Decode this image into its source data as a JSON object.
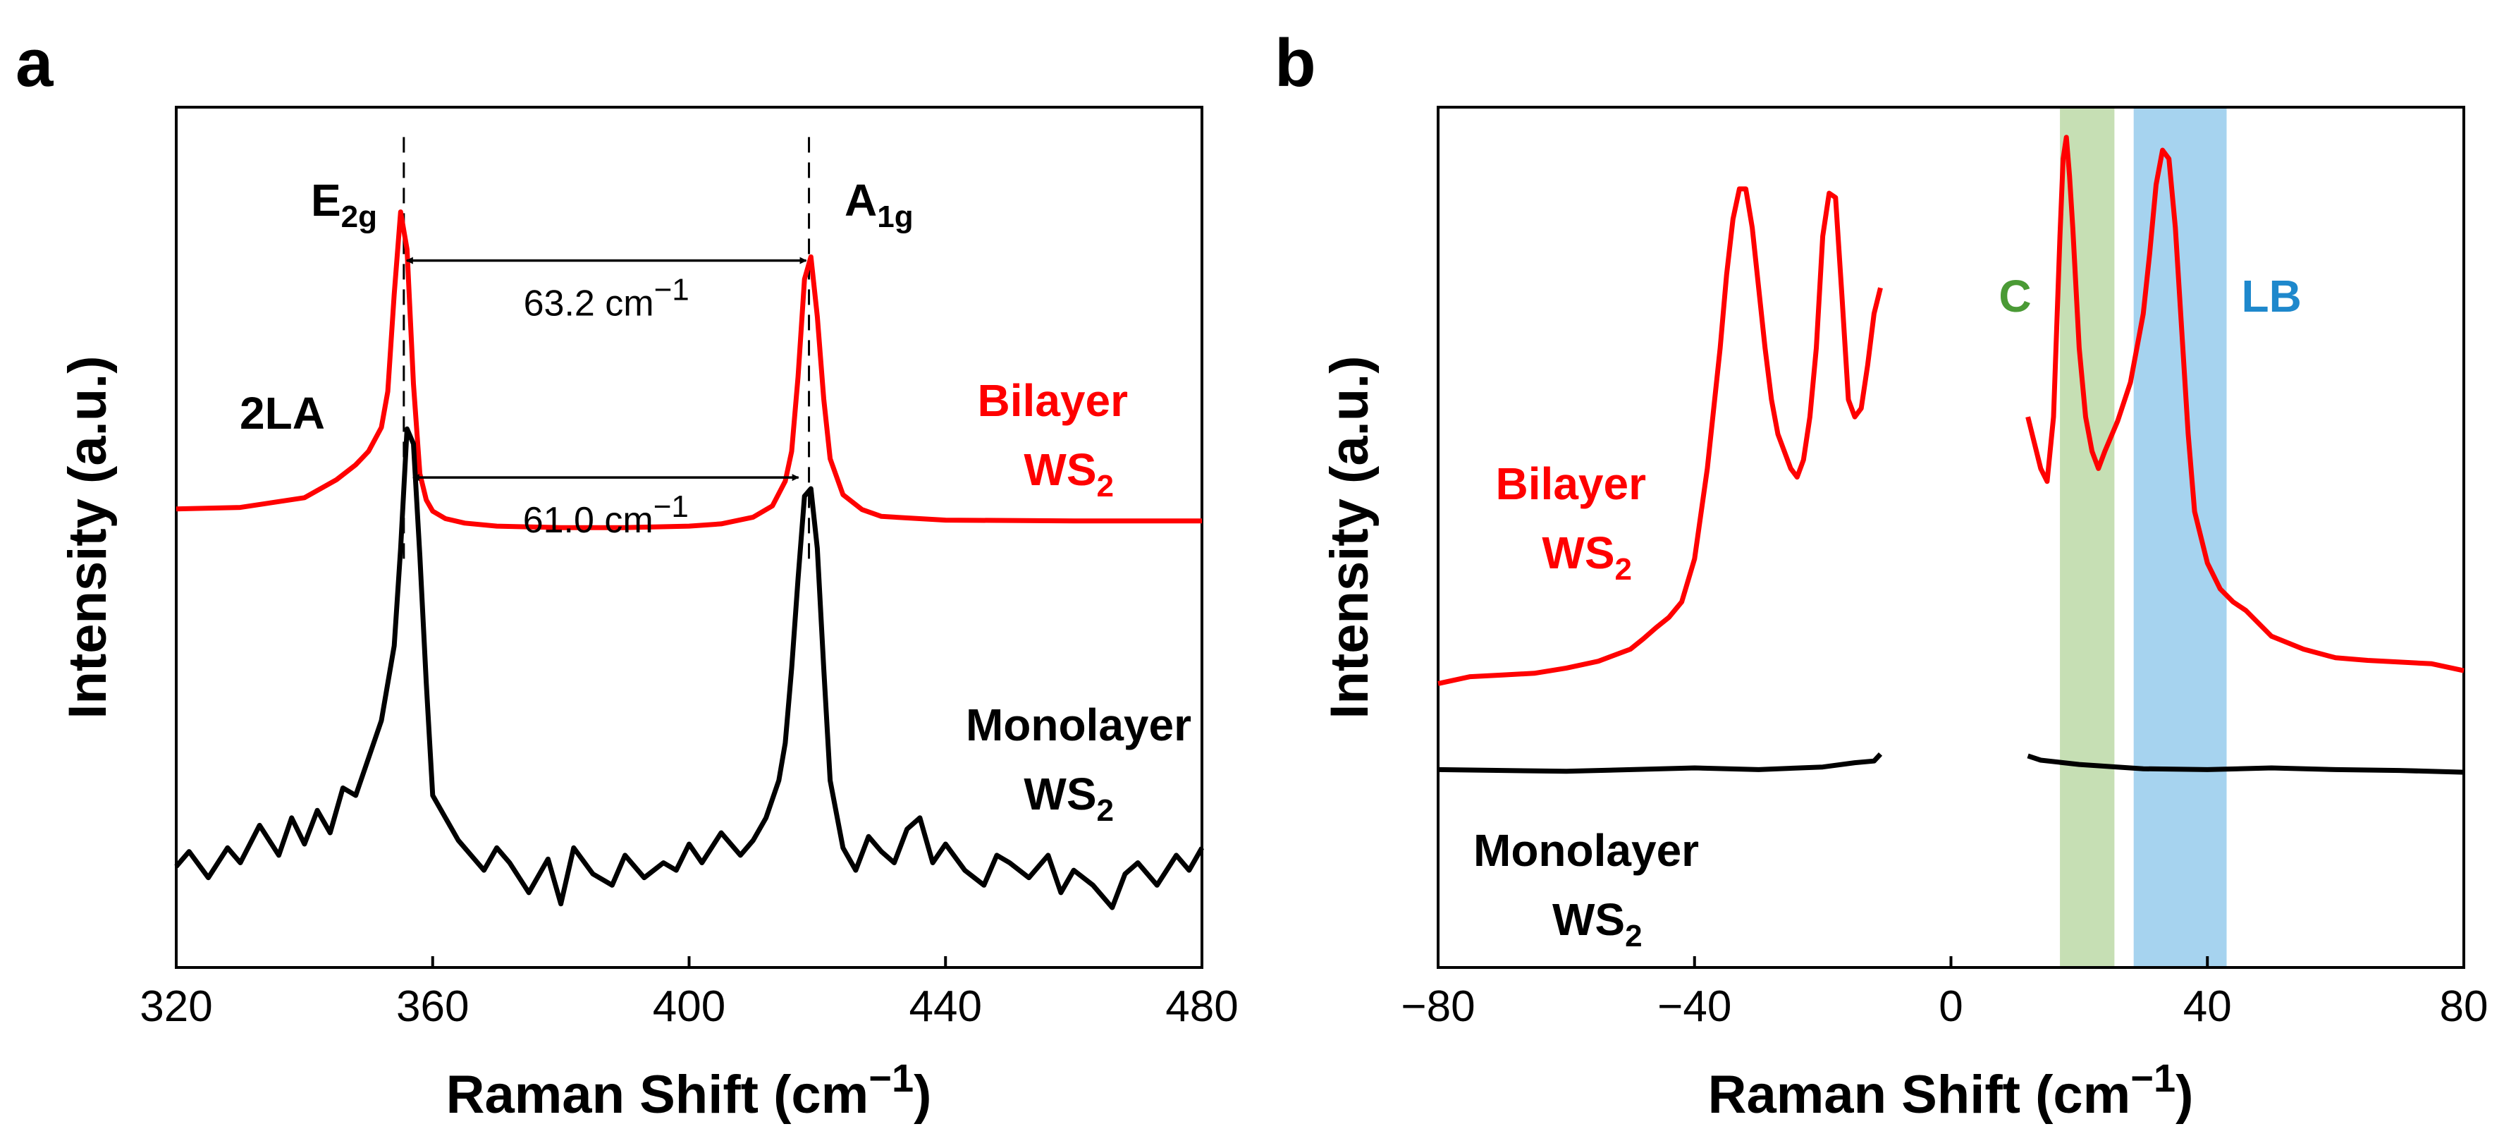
{
  "chart_data": [
    {
      "panel": "a",
      "type": "line",
      "xlabel": "Raman Shift (cm",
      "xlabel_sup": "−1",
      "xlabel_close": ")",
      "ylabel": "Intensity (a.u.)",
      "xlim": [
        320,
        480
      ],
      "ylim": [
        0,
        1.15
      ],
      "xticks": [
        "320",
        "360",
        "400",
        "440",
        "480"
      ],
      "xtick_values": [
        320,
        360,
        400,
        440,
        480
      ],
      "series": [
        {
          "name": "Bilayer WS2",
          "label_line1": "Bilayer",
          "label_line2": "WS",
          "label_sub": "2",
          "color": "#ff0000",
          "x": [
            320,
            330,
            340,
            345,
            348,
            350,
            352,
            353,
            354,
            355,
            356,
            357,
            358,
            359,
            360,
            362,
            365,
            370,
            380,
            390,
            400,
            405,
            410,
            413,
            415,
            416,
            417,
            418,
            419,
            420,
            421,
            422,
            424,
            427,
            430,
            440,
            460,
            480
          ],
          "y": [
            0.613,
            0.615,
            0.628,
            0.652,
            0.672,
            0.69,
            0.722,
            0.77,
            0.9,
            1.01,
            0.96,
            0.78,
            0.66,
            0.625,
            0.61,
            0.6,
            0.594,
            0.59,
            0.588,
            0.588,
            0.59,
            0.593,
            0.602,
            0.617,
            0.65,
            0.69,
            0.79,
            0.92,
            0.95,
            0.87,
            0.76,
            0.68,
            0.632,
            0.612,
            0.603,
            0.598,
            0.597,
            0.597
          ]
        },
        {
          "name": "Monolayer WS2",
          "label_line1": "Monolayer",
          "label_line2": "WS",
          "label_sub": "2",
          "color": "#000000",
          "x": [
            320,
            322,
            325,
            328,
            330,
            333,
            336,
            338,
            340,
            342,
            344,
            346,
            348,
            350,
            352,
            354,
            355,
            356,
            357,
            358,
            359,
            360,
            362,
            364,
            366,
            368,
            370,
            372,
            375,
            378,
            380,
            382,
            385,
            388,
            390,
            393,
            396,
            398,
            400,
            402,
            405,
            408,
            410,
            412,
            414,
            415,
            416,
            417,
            418,
            419,
            420,
            421,
            422,
            424,
            426,
            428,
            430,
            432,
            434,
            436,
            438,
            440,
            443,
            446,
            448,
            450,
            453,
            456,
            458,
            460,
            463,
            466,
            468,
            470,
            473,
            476,
            478,
            480
          ],
          "y": [
            0.135,
            0.155,
            0.12,
            0.16,
            0.14,
            0.19,
            0.15,
            0.2,
            0.165,
            0.21,
            0.18,
            0.24,
            0.23,
            0.28,
            0.33,
            0.43,
            0.56,
            0.72,
            0.7,
            0.55,
            0.38,
            0.23,
            0.2,
            0.17,
            0.15,
            0.13,
            0.16,
            0.14,
            0.1,
            0.145,
            0.085,
            0.16,
            0.125,
            0.11,
            0.15,
            0.12,
            0.14,
            0.13,
            0.165,
            0.14,
            0.18,
            0.15,
            0.17,
            0.2,
            0.25,
            0.3,
            0.4,
            0.52,
            0.63,
            0.64,
            0.56,
            0.4,
            0.25,
            0.16,
            0.13,
            0.175,
            0.155,
            0.14,
            0.185,
            0.2,
            0.14,
            0.165,
            0.13,
            0.11,
            0.15,
            0.14,
            0.12,
            0.15,
            0.1,
            0.13,
            0.11,
            0.08,
            0.125,
            0.14,
            0.11,
            0.15,
            0.13,
            0.16
          ]
        }
      ],
      "peak_labels": [
        {
          "main": "E",
          "sub": "2g",
          "x": 355
        },
        {
          "main": "A",
          "sub": "1g",
          "x": 419
        }
      ],
      "shoulder_label": "2LA",
      "annotations": [
        {
          "text": "63.2 cm",
          "sup": "−1",
          "x1": 355.5,
          "x2": 418.7,
          "y": 0.945
        },
        {
          "text": "61.0 cm",
          "sup": "−1",
          "x1": 356.5,
          "x2": 417.5,
          "y": 0.655
        }
      ],
      "dashed_lines": [
        {
          "x": 355.5,
          "y1": 0.545,
          "y2": 1.11
        },
        {
          "x": 418.7,
          "y1": 0.545,
          "y2": 1.11
        }
      ]
    },
    {
      "panel": "b",
      "type": "line",
      "xlabel": "Raman Shift (cm",
      "xlabel_sup": "−1",
      "xlabel_close": ")",
      "ylabel": "Intensity (a.u.)",
      "xlim": [
        -80,
        80
      ],
      "ylim": [
        0,
        1.0
      ],
      "xticks": [
        "−80",
        "−40",
        "0",
        "40",
        "80"
      ],
      "xtick_values": [
        -80,
        -40,
        0,
        40,
        80
      ],
      "bands": [
        {
          "label": "C",
          "x0": 17,
          "x1": 25.5,
          "color": "#c6dfb4",
          "label_color": "#4a9a35",
          "label_x": 10
        },
        {
          "label": "LB",
          "x0": 28.5,
          "x1": 43,
          "color": "#a6d3ef",
          "label_color": "#1e88cc",
          "label_x": 50
        }
      ],
      "series": [
        {
          "name": "Bilayer WS2",
          "label_line1": "Bilayer",
          "label_line2": "WS",
          "label_sub": "2",
          "color": "#ff0000",
          "segments": [
            {
              "x": [
                -80,
                -75,
                -70,
                -65,
                -60,
                -55,
                -50,
                -48,
                -46,
                -44,
                -42,
                -40,
                -38,
                -36,
                -35,
                -34,
                -33,
                -32,
                -31,
                -30,
                -29,
                -28,
                -27,
                -26,
                -25,
                -24,
                -23,
                -22,
                -21,
                -20,
                -19,
                -18,
                -17,
                -16,
                -15,
                -14,
                -13,
                -12,
                -11
              ],
              "y": [
                0.33,
                0.338,
                0.34,
                0.342,
                0.348,
                0.356,
                0.37,
                0.382,
                0.395,
                0.407,
                0.425,
                0.475,
                0.58,
                0.72,
                0.805,
                0.87,
                0.905,
                0.905,
                0.86,
                0.79,
                0.72,
                0.66,
                0.62,
                0.6,
                0.58,
                0.57,
                0.59,
                0.64,
                0.72,
                0.85,
                0.9,
                0.895,
                0.78,
                0.66,
                0.64,
                0.65,
                0.7,
                0.76,
                0.79
              ]
            },
            {
              "x": [
                12,
                13,
                14,
                15,
                16,
                17,
                17.5,
                18,
                18.5,
                19,
                20,
                21,
                22,
                23,
                24,
                26,
                28,
                30,
                31,
                32,
                33,
                34,
                35,
                36,
                37,
                38,
                40,
                42,
                44,
                46,
                50,
                55,
                60,
                65,
                70,
                75,
                80
              ],
              "y": [
                0.64,
                0.61,
                0.58,
                0.565,
                0.64,
                0.85,
                0.94,
                0.965,
                0.92,
                0.86,
                0.72,
                0.64,
                0.6,
                0.58,
                0.6,
                0.635,
                0.68,
                0.76,
                0.83,
                0.91,
                0.95,
                0.94,
                0.86,
                0.74,
                0.62,
                0.53,
                0.47,
                0.44,
                0.425,
                0.415,
                0.385,
                0.37,
                0.36,
                0.357,
                0.355,
                0.353,
                0.345
              ]
            }
          ]
        },
        {
          "name": "Monolayer WS2",
          "label_line1": "Monolayer",
          "label_line2": "WS",
          "label_sub": "2",
          "color": "#000000",
          "segments": [
            {
              "x": [
                -80,
                -60,
                -40,
                -30,
                -20,
                -15,
                -12,
                -11
              ],
              "y": [
                0.23,
                0.228,
                0.232,
                0.23,
                0.233,
                0.238,
                0.24,
                0.248
              ]
            },
            {
              "x": [
                12,
                14,
                20,
                30,
                40,
                50,
                60,
                70,
                80
              ],
              "y": [
                0.246,
                0.241,
                0.236,
                0.231,
                0.23,
                0.232,
                0.23,
                0.229,
                0.227
              ]
            }
          ]
        }
      ]
    }
  ]
}
